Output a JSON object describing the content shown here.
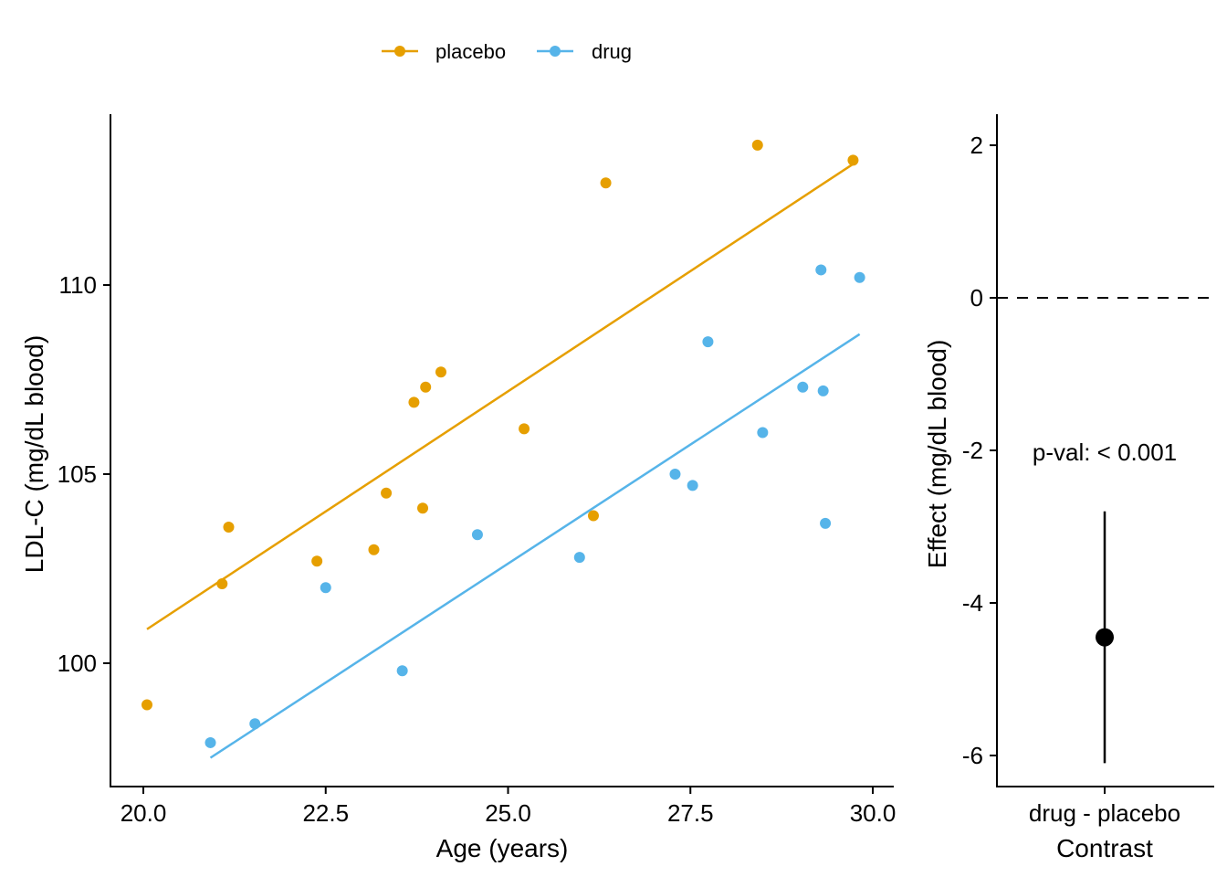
{
  "chart_data": [
    {
      "type": "scatter",
      "title": "",
      "xlabel": "Age (years)",
      "ylabel": "LDL-C (mg/dL blood)",
      "xlim": [
        19.6,
        30.7
      ],
      "ylim": [
        97.0,
        114.7
      ],
      "xticks": [
        20.0,
        22.5,
        25.0,
        27.5,
        30.0
      ],
      "xtick_labels": [
        "20.0",
        "22.5",
        "25.0",
        "27.5",
        "30.0"
      ],
      "yticks": [
        100,
        105,
        110
      ],
      "ytick_labels": [
        "100",
        "105",
        "110"
      ],
      "legend_position": "top",
      "grid": false,
      "series": [
        {
          "name": "placebo",
          "color": "#E69F00",
          "points": [
            [
              20.05,
              98.9
            ],
            [
              21.08,
              102.1
            ],
            [
              21.17,
              103.6
            ],
            [
              22.38,
              102.7
            ],
            [
              23.16,
              103.0
            ],
            [
              23.33,
              104.5
            ],
            [
              23.71,
              106.9
            ],
            [
              23.83,
              104.1
            ],
            [
              23.87,
              107.3
            ],
            [
              24.08,
              107.7
            ],
            [
              25.22,
              106.2
            ],
            [
              26.17,
              103.9
            ],
            [
              26.34,
              112.7
            ],
            [
              28.42,
              113.7
            ],
            [
              29.73,
              113.3
            ]
          ],
          "fit": [
            [
              20.05,
              100.9
            ],
            [
              29.73,
              113.2
            ]
          ]
        },
        {
          "name": "drug",
          "color": "#56B4E9",
          "points": [
            [
              20.92,
              97.9
            ],
            [
              21.53,
              98.4
            ],
            [
              22.5,
              102.0
            ],
            [
              23.55,
              99.8
            ],
            [
              24.58,
              103.4
            ],
            [
              25.98,
              102.8
            ],
            [
              27.29,
              105.0
            ],
            [
              27.53,
              104.7
            ],
            [
              27.74,
              108.5
            ],
            [
              28.49,
              106.1
            ],
            [
              29.04,
              107.3
            ],
            [
              29.29,
              110.4
            ],
            [
              29.32,
              107.2
            ],
            [
              29.35,
              103.7
            ],
            [
              29.82,
              110.2
            ]
          ],
          "fit": [
            [
              20.92,
              97.5
            ],
            [
              29.82,
              108.7
            ]
          ]
        }
      ]
    },
    {
      "type": "scatter",
      "title": "",
      "xlabel": "Contrast",
      "ylabel": "Effect (mg/dL blood)",
      "categories": [
        "drug - placebo"
      ],
      "ylim": [
        -6.4,
        2.4
      ],
      "yticks": [
        2,
        0,
        -2,
        -4,
        -6
      ],
      "ytick_labels": [
        "2",
        "0",
        "-2",
        "-4",
        "-6"
      ],
      "reference_line": 0,
      "estimate": -4.45,
      "ci": [
        -6.1,
        -2.8
      ],
      "annotation": "p-val: < 0.001",
      "grid": false
    }
  ]
}
